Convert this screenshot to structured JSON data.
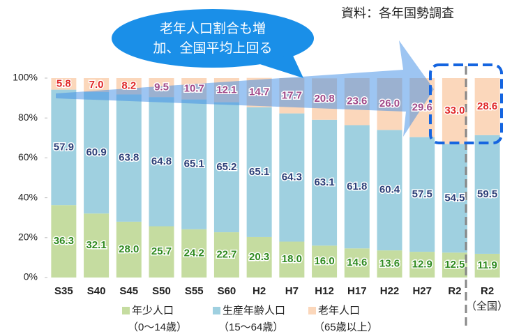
{
  "chart_data": {
    "type": "stacked_bar",
    "source": "資料：各年国勢調査",
    "callout": [
      "老年人口割合も増",
      "加、全国平均上回る"
    ],
    "annotation": "（全国）",
    "categories": [
      "S35",
      "S40",
      "S45",
      "S50",
      "S55",
      "S60",
      "H2",
      "H7",
      "H12",
      "H17",
      "H22",
      "H27",
      "R2",
      "R2"
    ],
    "series": [
      {
        "name": "年少人口",
        "sublabel": "（0〜14歳）",
        "color": "#c5dca0",
        "label_color": "#2f8a1f",
        "values": [
          36.3,
          32.1,
          28.0,
          25.7,
          24.2,
          22.7,
          20.3,
          18.0,
          16.0,
          14.6,
          13.6,
          12.9,
          12.5,
          11.9
        ],
        "value_labels": [
          "36.3",
          "32.1",
          "28.0",
          "25.7",
          "24.2",
          "22.7",
          "20.3",
          "18.0",
          "16.0",
          "14.6",
          "13.6",
          "12.9",
          "12.5",
          "11.9"
        ]
      },
      {
        "name": "生産年齢人口",
        "sublabel": "（15〜64歳）",
        "color": "#9fd0e0",
        "label_color": "#2c3f78",
        "values": [
          57.9,
          60.9,
          63.8,
          64.8,
          65.1,
          65.2,
          65.1,
          64.3,
          63.1,
          61.8,
          60.4,
          57.5,
          54.5,
          59.5
        ],
        "value_labels": [
          "57.9",
          "60.9",
          "63.8",
          "64.8",
          "65.1",
          "65.2",
          "65.1",
          "64.3",
          "63.1",
          "61.8",
          "60.4",
          "57.5",
          "54.5",
          "59.5"
        ]
      },
      {
        "name": "老年人口",
        "sublabel": "（65歳以上）",
        "color": "#fbd7bb",
        "label_colors": [
          "#e02828",
          "#e02828",
          "#e02828",
          "#a04888",
          "#a04888",
          "#a04888",
          "#a04888",
          "#a04888",
          "#a04888",
          "#a04888",
          "#a04888",
          "#a04888",
          "#e02828",
          "#e02828"
        ],
        "values": [
          5.8,
          7.0,
          8.2,
          9.5,
          10.7,
          12.1,
          14.7,
          17.7,
          20.8,
          23.6,
          26.0,
          29.6,
          33.0,
          28.6
        ],
        "value_labels": [
          "5.8",
          "7.0",
          "8.2",
          "9.5",
          "10.7",
          "12.1",
          "14.7",
          "17.7",
          "20.8",
          "23.6",
          "26.0",
          "29.6",
          "33.0",
          "28.6"
        ]
      }
    ],
    "ylim": [
      0,
      100
    ],
    "yticks": [
      {
        "value": 0,
        "label": "0%"
      },
      {
        "value": 20,
        "label": "20%"
      },
      {
        "value": 40,
        "label": "40%"
      },
      {
        "value": 60,
        "label": "60%"
      },
      {
        "value": 80,
        "label": "80%"
      },
      {
        "value": 100,
        "label": "100%"
      }
    ]
  }
}
